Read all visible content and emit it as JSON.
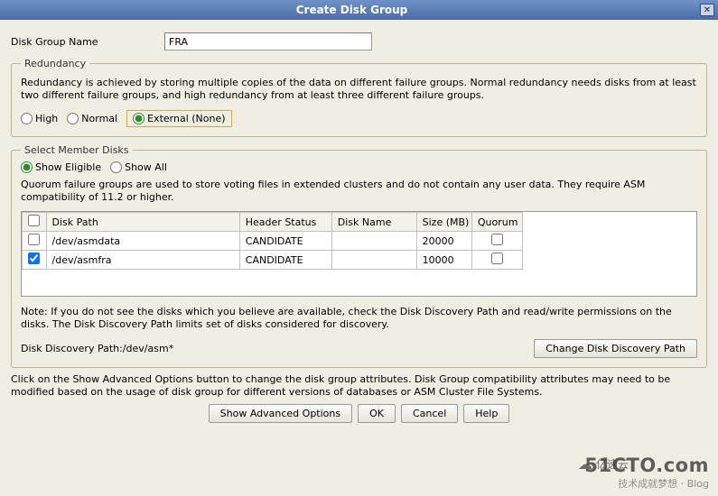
{
  "window": {
    "title": "Create Disk Group"
  },
  "form": {
    "disk_group_name_label": "Disk Group Name",
    "disk_group_name_value": "FRA"
  },
  "redundancy_section": {
    "legend": "Redundancy",
    "description": "Redundancy is achieved by storing multiple copies of the data on different failure groups. Normal redundancy needs disks from at least two different failure groups, and high redundancy from at least three different failure groups.",
    "selected": "external",
    "options": {
      "high": "High",
      "normal": "Normal",
      "external": "External (None)"
    }
  },
  "member_section": {
    "legend": "Select Member Disks",
    "show_selected": "eligible",
    "show_eligible_label": "Show Eligible",
    "show_all_label": "Show All",
    "quorum_description": "Quorum failure groups are used to store voting files in extended clusters and do not contain any user data. They require ASM compatibility of 11.2 or higher.",
    "columns": {
      "disk_path": "Disk Path",
      "header_status": "Header Status",
      "disk_name": "Disk Name",
      "size_mb": "Size (MB)",
      "quorum": "Quorum"
    },
    "rows": [
      {
        "checked": false,
        "disk_path": "/dev/asmdata",
        "header_status": "CANDIDATE",
        "disk_name": "",
        "size_mb": "20000",
        "quorum": false
      },
      {
        "checked": true,
        "disk_path": "/dev/asmfra",
        "header_status": "CANDIDATE",
        "disk_name": "",
        "size_mb": "10000",
        "quorum": false
      }
    ],
    "note": "Note: If you do not see the disks which you believe are available, check the Disk Discovery Path and read/write permissions on the disks. The Disk Discovery Path limits set of disks considered for discovery.",
    "discovery_path_label": "Disk Discovery Path:",
    "discovery_path_value": "/dev/asm*",
    "change_path_button": "Change Disk Discovery Path"
  },
  "footer": {
    "advanced_note": "Click on the Show Advanced Options button to change the disk group attributes. Disk Group compatibility attributes may need to be modified based on the usage of disk group for different versions of databases or ASM Cluster File Systems.",
    "buttons": {
      "advanced": "Show Advanced Options",
      "ok": "OK",
      "cancel": "Cancel",
      "help": "Help"
    }
  },
  "watermarks": {
    "cto_big": "51CTO.com",
    "cto_sub": "技术成就梦想 · Blog",
    "yisu": "亿速云"
  },
  "theme": {
    "titlebar_start": "#6f92c8",
    "titlebar_end": "#4a6ba8",
    "panel_bg": "#f0eee2",
    "border_gray": "#9a9a9a",
    "highlight_border": "#c9a85a",
    "radio_accent": "#2e8b2e"
  }
}
